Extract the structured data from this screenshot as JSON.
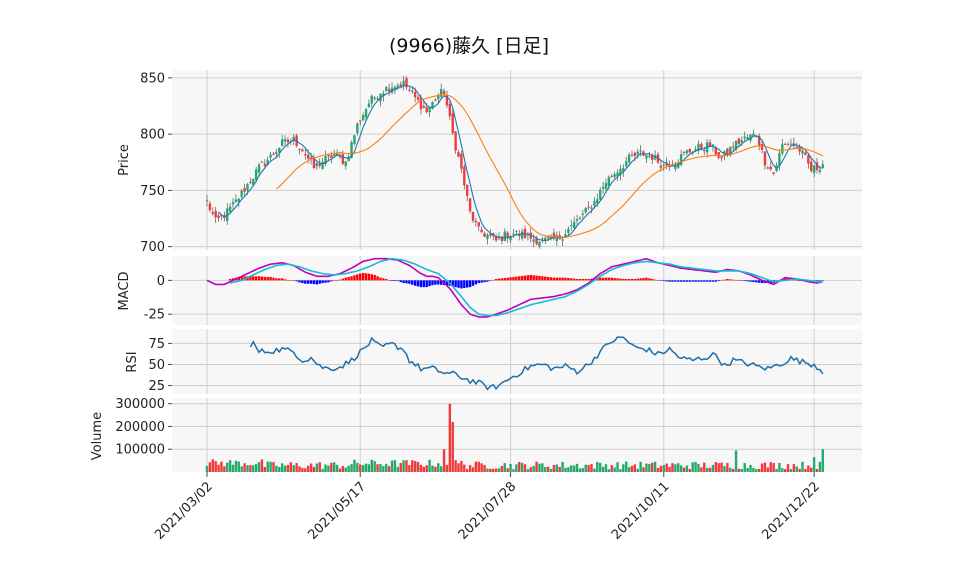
{
  "chart_data": {
    "type": "candlestick",
    "title": "(9966)藤久 [日足]",
    "x_tick_labels": [
      "2021/03/02",
      "2021/05/17",
      "2021/07/28",
      "2021/10/11",
      "2021/12/22"
    ],
    "x_tick_index": [
      0,
      53,
      105,
      158,
      210
    ],
    "n_days": 214,
    "colors": {
      "up": "#26a96c",
      "down": "#ef3b3b",
      "sma_short": "#1f77b4",
      "sma_long": "#ff7f0e",
      "macd": "#c000c0",
      "signal": "#17becf",
      "hist_pos": "#ff0000",
      "hist_neg": "#0000ff",
      "rsi": "#1f6fa8",
      "grid": "#cfcfcf",
      "panel_bg": "#f7f7f7"
    },
    "price_panel": {
      "ylabel": "Price",
      "ylim": [
        697,
        857
      ],
      "ticks": [
        700,
        750,
        800,
        850
      ],
      "anchors": [
        [
          0,
          740
        ],
        [
          3,
          722
        ],
        [
          6,
          728
        ],
        [
          10,
          740
        ],
        [
          14,
          755
        ],
        [
          18,
          770
        ],
        [
          22,
          780
        ],
        [
          26,
          792
        ],
        [
          30,
          795
        ],
        [
          33,
          786
        ],
        [
          37,
          770
        ],
        [
          40,
          776
        ],
        [
          44,
          782
        ],
        [
          48,
          775
        ],
        [
          52,
          808
        ],
        [
          56,
          828
        ],
        [
          60,
          838
        ],
        [
          64,
          843
        ],
        [
          68,
          845
        ],
        [
          72,
          832
        ],
        [
          76,
          820
        ],
        [
          80,
          835
        ],
        [
          82,
          838
        ],
        [
          85,
          800
        ],
        [
          88,
          768
        ],
        [
          91,
          730
        ],
        [
          94,
          714
        ],
        [
          97,
          710
        ],
        [
          100,
          705
        ],
        [
          103,
          710
        ],
        [
          106,
          712
        ],
        [
          110,
          710
        ],
        [
          114,
          706
        ],
        [
          118,
          705
        ],
        [
          122,
          708
        ],
        [
          126,
          718
        ],
        [
          130,
          728
        ],
        [
          134,
          740
        ],
        [
          138,
          758
        ],
        [
          142,
          768
        ],
        [
          146,
          778
        ],
        [
          150,
          783
        ],
        [
          154,
          780
        ],
        [
          158,
          772
        ],
        [
          162,
          776
        ],
        [
          166,
          784
        ],
        [
          170,
          788
        ],
        [
          174,
          790
        ],
        [
          178,
          778
        ],
        [
          182,
          790
        ],
        [
          186,
          796
        ],
        [
          190,
          800
        ],
        [
          193,
          776
        ],
        [
          196,
          765
        ],
        [
          199,
          790
        ],
        [
          202,
          792
        ],
        [
          205,
          786
        ],
        [
          207,
          778
        ],
        [
          209,
          768
        ],
        [
          211,
          770
        ],
        [
          213,
          774
        ]
      ]
    },
    "macd_panel": {
      "ylabel": "MACD",
      "ylim": [
        -33,
        18
      ],
      "ticks": [
        -25,
        0
      ],
      "macd_anchors": [
        [
          0,
          0
        ],
        [
          3,
          -3
        ],
        [
          6,
          -3
        ],
        [
          10,
          1
        ],
        [
          14,
          5
        ],
        [
          18,
          9
        ],
        [
          22,
          12
        ],
        [
          26,
          13
        ],
        [
          30,
          11
        ],
        [
          34,
          6
        ],
        [
          38,
          3
        ],
        [
          42,
          3
        ],
        [
          46,
          5
        ],
        [
          50,
          9
        ],
        [
          54,
          14
        ],
        [
          58,
          16
        ],
        [
          62,
          16
        ],
        [
          66,
          15
        ],
        [
          70,
          11
        ],
        [
          74,
          5
        ],
        [
          76,
          3
        ],
        [
          78,
          3
        ],
        [
          80,
          2
        ],
        [
          84,
          -6
        ],
        [
          88,
          -18
        ],
        [
          91,
          -25
        ],
        [
          94,
          -27
        ],
        [
          97,
          -27
        ],
        [
          100,
          -25
        ],
        [
          104,
          -22
        ],
        [
          108,
          -18
        ],
        [
          112,
          -14
        ],
        [
          116,
          -13
        ],
        [
          120,
          -12
        ],
        [
          124,
          -10
        ],
        [
          128,
          -7
        ],
        [
          132,
          -2
        ],
        [
          136,
          5
        ],
        [
          140,
          10
        ],
        [
          144,
          12
        ],
        [
          148,
          14
        ],
        [
          152,
          16
        ],
        [
          156,
          13
        ],
        [
          160,
          11
        ],
        [
          164,
          9
        ],
        [
          168,
          8
        ],
        [
          172,
          7
        ],
        [
          176,
          6
        ],
        [
          180,
          8
        ],
        [
          184,
          7
        ],
        [
          188,
          4
        ],
        [
          192,
          0
        ],
        [
          196,
          -3
        ],
        [
          200,
          2
        ],
        [
          204,
          1
        ],
        [
          208,
          -1
        ],
        [
          211,
          -2
        ],
        [
          213,
          -1
        ]
      ],
      "signal_anchors": [
        [
          8,
          -2
        ],
        [
          12,
          0
        ],
        [
          16,
          4
        ],
        [
          20,
          8
        ],
        [
          24,
          11
        ],
        [
          28,
          12
        ],
        [
          32,
          10
        ],
        [
          36,
          7
        ],
        [
          40,
          5
        ],
        [
          44,
          4
        ],
        [
          48,
          5
        ],
        [
          52,
          7
        ],
        [
          56,
          10
        ],
        [
          60,
          14
        ],
        [
          64,
          16
        ],
        [
          68,
          15
        ],
        [
          72,
          12
        ],
        [
          76,
          8
        ],
        [
          80,
          5
        ],
        [
          84,
          -2
        ],
        [
          88,
          -12
        ],
        [
          91,
          -20
        ],
        [
          94,
          -25
        ],
        [
          97,
          -26
        ],
        [
          100,
          -26
        ],
        [
          104,
          -24
        ],
        [
          108,
          -21
        ],
        [
          112,
          -18
        ],
        [
          116,
          -16
        ],
        [
          120,
          -14
        ],
        [
          124,
          -12
        ],
        [
          128,
          -8
        ],
        [
          132,
          -3
        ],
        [
          136,
          3
        ],
        [
          140,
          8
        ],
        [
          144,
          11
        ],
        [
          148,
          13
        ],
        [
          152,
          14
        ],
        [
          156,
          13
        ],
        [
          160,
          12
        ],
        [
          164,
          10
        ],
        [
          168,
          9
        ],
        [
          172,
          8
        ],
        [
          176,
          7
        ],
        [
          180,
          7
        ],
        [
          184,
          7
        ],
        [
          188,
          5
        ],
        [
          192,
          2
        ],
        [
          196,
          -1
        ],
        [
          200,
          0
        ],
        [
          204,
          1
        ],
        [
          208,
          0
        ],
        [
          211,
          -1
        ],
        [
          213,
          -1
        ]
      ]
    },
    "rsi_panel": {
      "ylabel": "RSI",
      "ylim": [
        15,
        92
      ],
      "ticks": [
        25,
        50,
        75
      ],
      "anchors": [
        [
          15,
          70
        ],
        [
          16,
          75
        ],
        [
          18,
          65
        ],
        [
          22,
          66
        ],
        [
          26,
          68
        ],
        [
          30,
          65
        ],
        [
          33,
          55
        ],
        [
          36,
          58
        ],
        [
          39,
          48
        ],
        [
          42,
          45
        ],
        [
          46,
          47
        ],
        [
          50,
          55
        ],
        [
          54,
          68
        ],
        [
          57,
          78
        ],
        [
          60,
          70
        ],
        [
          64,
          74
        ],
        [
          68,
          68
        ],
        [
          70,
          55
        ],
        [
          74,
          45
        ],
        [
          78,
          45
        ],
        [
          82,
          40
        ],
        [
          86,
          38
        ],
        [
          90,
          32
        ],
        [
          94,
          28
        ],
        [
          98,
          22
        ],
        [
          101,
          25
        ],
        [
          104,
          32
        ],
        [
          108,
          40
        ],
        [
          112,
          48
        ],
        [
          116,
          50
        ],
        [
          120,
          45
        ],
        [
          124,
          48
        ],
        [
          128,
          42
        ],
        [
          132,
          50
        ],
        [
          136,
          65
        ],
        [
          140,
          78
        ],
        [
          144,
          82
        ],
        [
          148,
          70
        ],
        [
          152,
          68
        ],
        [
          156,
          62
        ],
        [
          160,
          68
        ],
        [
          164,
          57
        ],
        [
          168,
          55
        ],
        [
          172,
          58
        ],
        [
          176,
          62
        ],
        [
          179,
          48
        ],
        [
          182,
          55
        ],
        [
          186,
          52
        ],
        [
          190,
          48
        ],
        [
          194,
          45
        ],
        [
          198,
          50
        ],
        [
          202,
          57
        ],
        [
          206,
          53
        ],
        [
          210,
          50
        ],
        [
          213,
          42
        ]
      ]
    },
    "volume_panel": {
      "ylabel": "Volume",
      "ylim": [
        0,
        325000
      ],
      "ticks": [
        100000,
        200000,
        300000
      ],
      "big_bars": [
        [
          84,
          300000
        ],
        [
          85,
          220000
        ],
        [
          82,
          100000
        ],
        [
          183,
          95000
        ],
        [
          210,
          65000
        ],
        [
          213,
          100000
        ]
      ]
    }
  }
}
